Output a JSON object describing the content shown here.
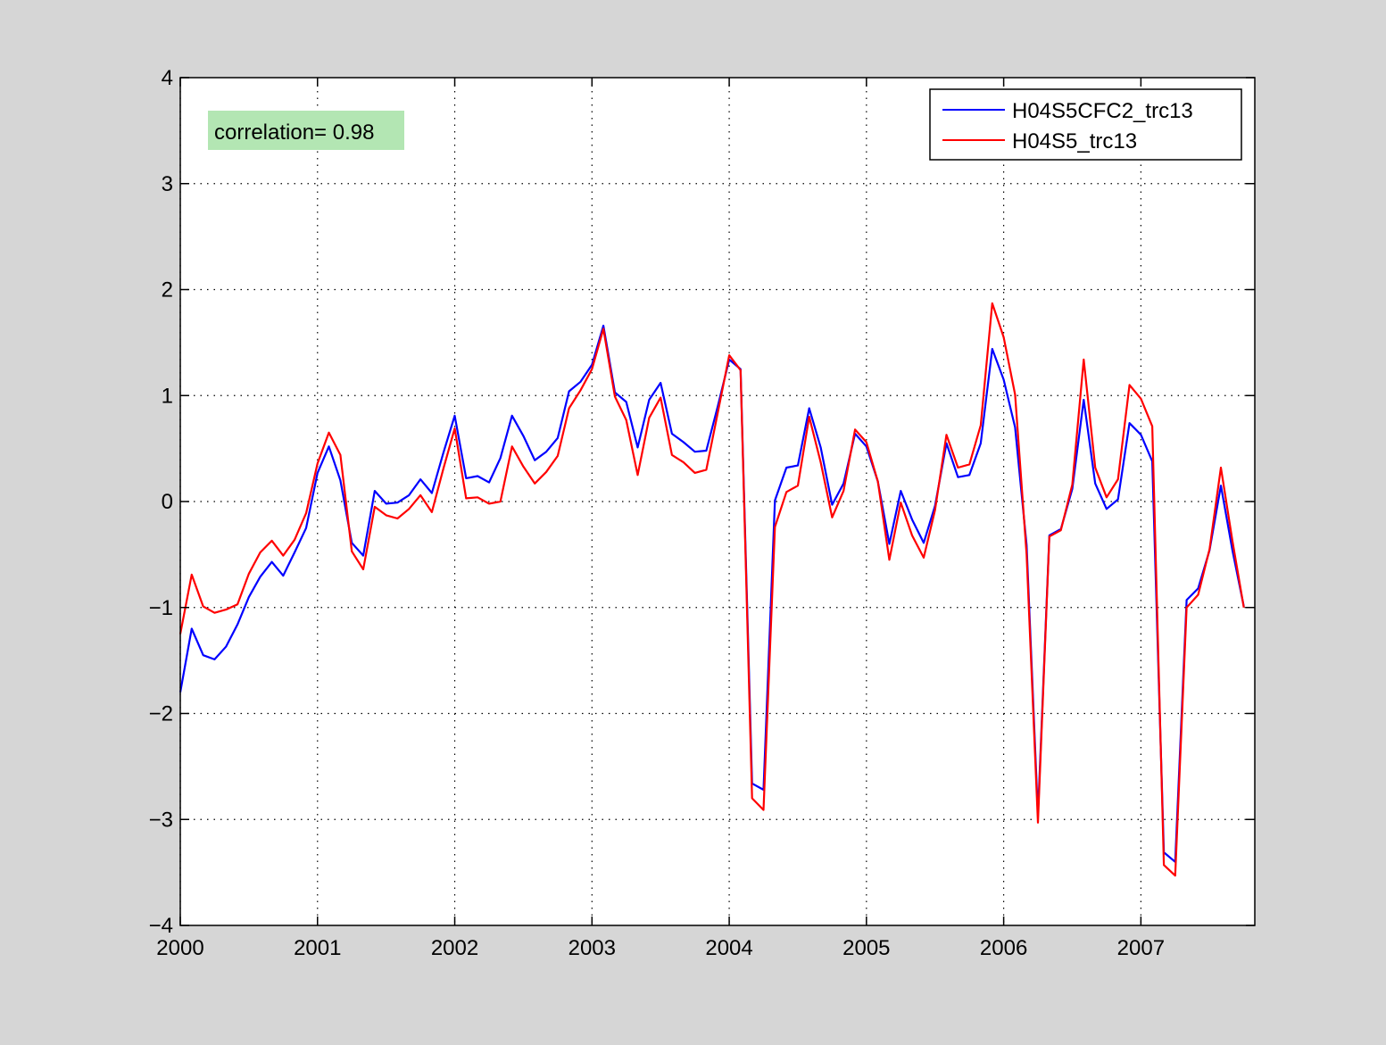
{
  "chart_data": {
    "type": "line",
    "title": "",
    "xlabel": "",
    "ylabel": "",
    "xlim": [
      2000,
      2007.83
    ],
    "ylim": [
      -4,
      4
    ],
    "x_ticks": [
      "2000",
      "2001",
      "2002",
      "2003",
      "2004",
      "2005",
      "2006",
      "2007"
    ],
    "y_ticks": [
      "−4",
      "−3",
      "−2",
      "−1",
      "0",
      "1",
      "2",
      "3",
      "4"
    ],
    "grid": true,
    "legend_position": "top-right",
    "annotation": {
      "text": "correlation= 0.98",
      "background": "#b3e6b3"
    },
    "x": [
      2000.0,
      2000.083,
      2000.167,
      2000.25,
      2000.333,
      2000.417,
      2000.5,
      2000.583,
      2000.667,
      2000.75,
      2000.833,
      2000.917,
      2001.0,
      2001.083,
      2001.167,
      2001.25,
      2001.333,
      2001.417,
      2001.5,
      2001.583,
      2001.667,
      2001.75,
      2001.833,
      2001.917,
      2002.0,
      2002.083,
      2002.167,
      2002.25,
      2002.333,
      2002.417,
      2002.5,
      2002.583,
      2002.667,
      2002.75,
      2002.833,
      2002.917,
      2003.0,
      2003.083,
      2003.167,
      2003.25,
      2003.333,
      2003.417,
      2003.5,
      2003.583,
      2003.667,
      2003.75,
      2003.833,
      2003.917,
      2004.0,
      2004.083,
      2004.167,
      2004.25,
      2004.333,
      2004.417,
      2004.5,
      2004.583,
      2004.667,
      2004.75,
      2004.833,
      2004.917,
      2005.0,
      2005.083,
      2005.167,
      2005.25,
      2005.333,
      2005.417,
      2005.5,
      2005.583,
      2005.667,
      2005.75,
      2005.833,
      2005.917,
      2006.0,
      2006.083,
      2006.167,
      2006.25,
      2006.333,
      2006.417,
      2006.5,
      2006.583,
      2006.667,
      2006.75,
      2006.833,
      2006.917,
      2007.0,
      2007.083,
      2007.167,
      2007.25,
      2007.333,
      2007.417,
      2007.5,
      2007.583,
      2007.667,
      2007.75
    ],
    "series": [
      {
        "name": "H04S5CFC2_trc13",
        "color": "#0000ff",
        "values": [
          -1.8,
          -1.2,
          -1.45,
          -1.49,
          -1.37,
          -1.16,
          -0.9,
          -0.71,
          -0.57,
          -0.7,
          -0.48,
          -0.25,
          0.27,
          0.52,
          0.2,
          -0.39,
          -0.51,
          0.1,
          -0.02,
          -0.01,
          0.06,
          0.21,
          0.08,
          0.46,
          0.81,
          0.22,
          0.24,
          0.18,
          0.41,
          0.81,
          0.62,
          0.39,
          0.47,
          0.6,
          1.04,
          1.13,
          1.29,
          1.66,
          1.03,
          0.94,
          0.51,
          0.96,
          1.12,
          0.64,
          0.56,
          0.47,
          0.48,
          0.9,
          1.34,
          1.25,
          -2.66,
          -2.72,
          0.01,
          0.32,
          0.34,
          0.88,
          0.51,
          -0.03,
          0.17,
          0.64,
          0.52,
          0.19,
          -0.4,
          0.1,
          -0.17,
          -0.39,
          -0.04,
          0.55,
          0.23,
          0.25,
          0.55,
          1.44,
          1.15,
          0.7,
          -0.41,
          -2.96,
          -0.32,
          -0.26,
          0.12,
          0.96,
          0.17,
          -0.07,
          0.02,
          0.74,
          0.63,
          0.38,
          -3.31,
          -3.4,
          -0.93,
          -0.82,
          -0.46,
          0.15,
          -0.46,
          -0.99
        ]
      },
      {
        "name": "H04S5_trc13",
        "color": "#ff0000",
        "values": [
          -1.25,
          -0.69,
          -0.99,
          -1.05,
          -1.02,
          -0.97,
          -0.68,
          -0.48,
          -0.37,
          -0.51,
          -0.36,
          -0.11,
          0.36,
          0.65,
          0.44,
          -0.47,
          -0.64,
          -0.05,
          -0.13,
          -0.16,
          -0.07,
          0.06,
          -0.1,
          0.31,
          0.69,
          0.03,
          0.04,
          -0.02,
          0.0,
          0.52,
          0.33,
          0.17,
          0.28,
          0.43,
          0.88,
          1.05,
          1.25,
          1.63,
          0.99,
          0.77,
          0.25,
          0.79,
          0.98,
          0.44,
          0.37,
          0.27,
          0.3,
          0.84,
          1.38,
          1.24,
          -2.8,
          -2.91,
          -0.24,
          0.09,
          0.15,
          0.8,
          0.37,
          -0.15,
          0.1,
          0.68,
          0.56,
          0.19,
          -0.55,
          -0.01,
          -0.32,
          -0.53,
          -0.08,
          0.63,
          0.32,
          0.35,
          0.72,
          1.87,
          1.55,
          1.01,
          -0.5,
          -3.03,
          -0.33,
          -0.27,
          0.16,
          1.34,
          0.32,
          0.04,
          0.21,
          1.1,
          0.97,
          0.71,
          -3.43,
          -3.53,
          -1.0,
          -0.88,
          -0.45,
          0.32,
          -0.37,
          -1.0
        ]
      }
    ]
  }
}
